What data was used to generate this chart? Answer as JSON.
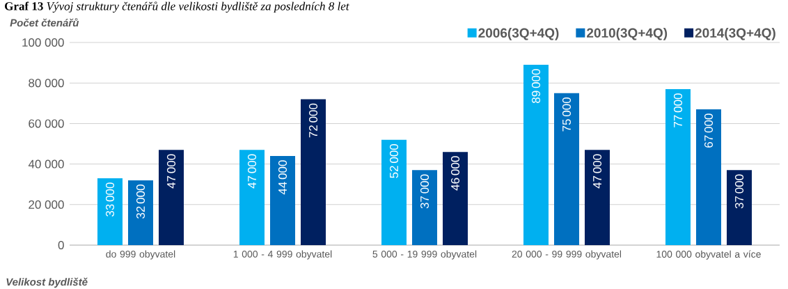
{
  "chart_data": {
    "type": "bar",
    "title": "**Graf 13** *Vývoj struktury čtenářů dle velikosti bydliště za posledních 8 let*",
    "ylabel": "Počet čtenářů",
    "xlabel": "Velikost bydliště",
    "categories": [
      "do 999 obyvatel",
      "1 000 - 4 999 obyvatel",
      "5 000 - 19 999 obyvatel",
      "20 000 - 99 999 obyvatel",
      "100 000 obyvatel a více"
    ],
    "series": [
      {
        "name": "2006(3Q+4Q)",
        "color": "#00b0f0",
        "values": [
          33000,
          47000,
          52000,
          89000,
          77000
        ]
      },
      {
        "name": "2010(3Q+4Q)",
        "color": "#0070c0",
        "values": [
          32000,
          44000,
          37000,
          75000,
          67000
        ]
      },
      {
        "name": "2014(3Q+4Q)",
        "color": "#002060",
        "values": [
          47000,
          72000,
          46000,
          47000,
          37000
        ]
      }
    ],
    "ylim": [
      0,
      100000
    ],
    "yticks": [
      {
        "value": 0,
        "label": "0"
      },
      {
        "value": 20000,
        "label": "20 000"
      },
      {
        "value": 40000,
        "label": "40 000"
      },
      {
        "value": 60000,
        "label": "60 000"
      },
      {
        "value": 80000,
        "label": "80 000"
      },
      {
        "value": 100000,
        "label": "100 000"
      }
    ],
    "grid": "y",
    "legend": "top right",
    "data_labels": true
  }
}
